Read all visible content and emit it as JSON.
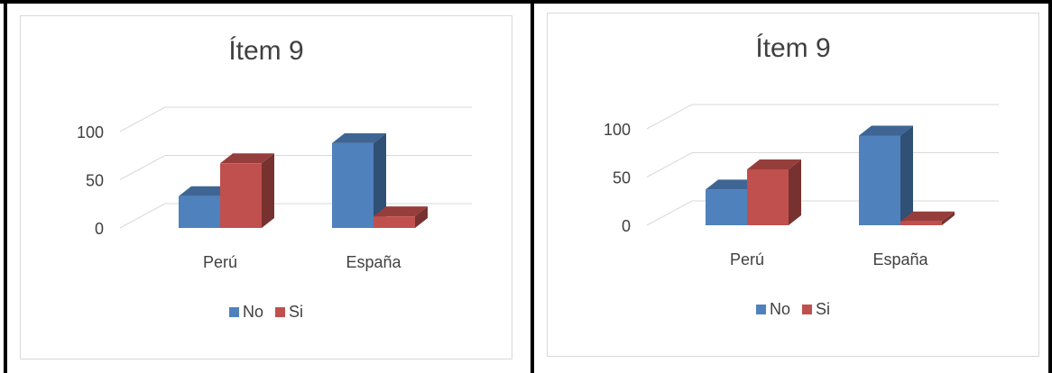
{
  "chart_data": [
    {
      "type": "bar",
      "title": "Ítem 9",
      "categories": [
        "Perú",
        "España"
      ],
      "series": [
        {
          "name": "No",
          "values": [
            33,
            88
          ]
        },
        {
          "name": "Si",
          "values": [
            67,
            12
          ]
        }
      ],
      "yticks": [
        "0",
        "50",
        "100"
      ],
      "ylim": [
        0,
        100
      ],
      "grid": true,
      "legend": "bottom",
      "colors": {
        "No": "#4f81bd",
        "Si": "#c0504d"
      }
    },
    {
      "type": "bar",
      "title": "Ítem 9",
      "categories": [
        "Perú",
        "España"
      ],
      "series": [
        {
          "name": "No",
          "values": [
            37,
            93
          ]
        },
        {
          "name": "Si",
          "values": [
            58,
            4
          ]
        }
      ],
      "yticks": [
        "0",
        "50",
        "100"
      ],
      "ylim": [
        0,
        100
      ],
      "grid": true,
      "legend": "bottom",
      "colors": {
        "No": "#4f81bd",
        "Si": "#c0504d"
      }
    }
  ]
}
